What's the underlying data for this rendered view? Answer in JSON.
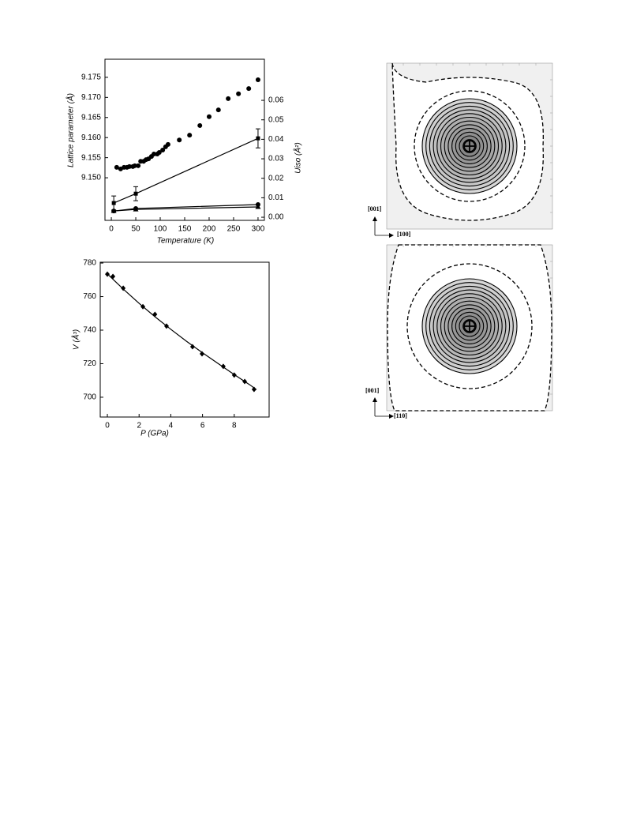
{
  "chart_data": [
    {
      "type": "scatter",
      "x_label": "Temperature (K)",
      "y_label": "Lattice parameter (Å)",
      "y2_label": "Uiso (Å²)",
      "xlim": [
        -13,
        313
      ],
      "xticks": [
        0,
        50,
        100,
        150,
        200,
        250,
        300
      ],
      "ylim": [
        9.1394,
        9.1795
      ],
      "yticks": [
        {
          "value": 9.15,
          "label": "9.150"
        },
        9.155,
        {
          "value": 9.16,
          "label": "9.160"
        },
        9.165,
        {
          "value": 9.17,
          "label": "9.170"
        },
        9.175
      ],
      "y2lim": [
        -0.0016,
        0.0811
      ],
      "y2ticks": [
        {
          "value": 0,
          "label": "0.00"
        },
        0.01,
        0.02,
        0.03,
        0.04,
        0.05,
        0.06
      ],
      "series": [
        {
          "color": "#000000",
          "marker": "circle",
          "x": [
            11,
            19,
            26,
            32,
            37,
            44,
            48,
            55,
            60,
            66,
            71,
            76,
            82,
            87,
            94,
            98,
            105,
            111,
            116,
            139,
            160,
            181,
            200,
            219,
            239,
            260,
            281,
            300
          ],
          "values": [
            9.1526,
            9.1522,
            9.1526,
            9.1526,
            9.1528,
            9.1528,
            9.153,
            9.153,
            9.1541,
            9.1541,
            9.1545,
            9.1547,
            9.1553,
            9.1559,
            9.1559,
            9.1563,
            9.1569,
            9.1577,
            9.1583,
            9.1594,
            9.1606,
            9.163,
            9.1652,
            9.1669,
            9.1697,
            9.1709,
            9.1722,
            9.1744
          ]
        },
        {
          "color": "#000000",
          "marker": "square",
          "axis": "y2",
          "line": true,
          "x": [
            5,
            50,
            300
          ],
          "values": [
            0.0073,
            0.0121,
            0.0405
          ],
          "errors": [
            0.0036,
            0.0036,
            0.0049
          ]
        },
        {
          "color": "#000000",
          "marker": "circle",
          "axis": "y2",
          "line": true,
          "x": [
            5,
            50,
            300
          ],
          "values": [
            0.0032,
            0.0045,
            0.0065
          ]
        },
        {
          "color": "#000000",
          "marker": "triangle",
          "axis": "y2",
          "line": true,
          "x": [
            5,
            50,
            300
          ],
          "values": [
            0.0032,
            0.004,
            0.0053
          ]
        }
      ]
    },
    {
      "type": "scatter",
      "x_label": "P (GPa)",
      "y_label": "V (Å³)",
      "xlim": [
        -0.45,
        10.2
      ],
      "xticks": [
        0,
        2,
        4,
        6,
        8
      ],
      "ylim": [
        688.2,
        780.5
      ],
      "yticks": [
        700,
        720,
        740,
        760,
        780
      ],
      "series": [
        {
          "color": "#000000",
          "marker": "diamond",
          "x": [
            0,
            0.35,
            1.0,
            2.24,
            3.0,
            3.73,
            5.37,
            5.97,
            7.31,
            8.0,
            8.66,
            9.25
          ],
          "values": [
            773.4,
            772,
            765,
            754,
            749.4,
            742.4,
            730.1,
            725.9,
            718.4,
            713.2,
            709.4,
            704.7
          ]
        },
        {
          "color": "#000000",
          "line": true,
          "x": [
            0,
            1,
            2,
            3,
            4,
            5,
            6,
            7,
            8,
            9,
            9.4
          ],
          "values": [
            773.5,
            764.5,
            756,
            748,
            740.5,
            733.3,
            726.5,
            720,
            713.5,
            707.3,
            704.5
          ]
        }
      ]
    }
  ],
  "figures": [
    {
      "vertical_axis": "[001]",
      "horizontal_axis": "[100]"
    },
    {
      "vertical_axis": "[001]",
      "horizontal_axis": "[110]"
    }
  ]
}
